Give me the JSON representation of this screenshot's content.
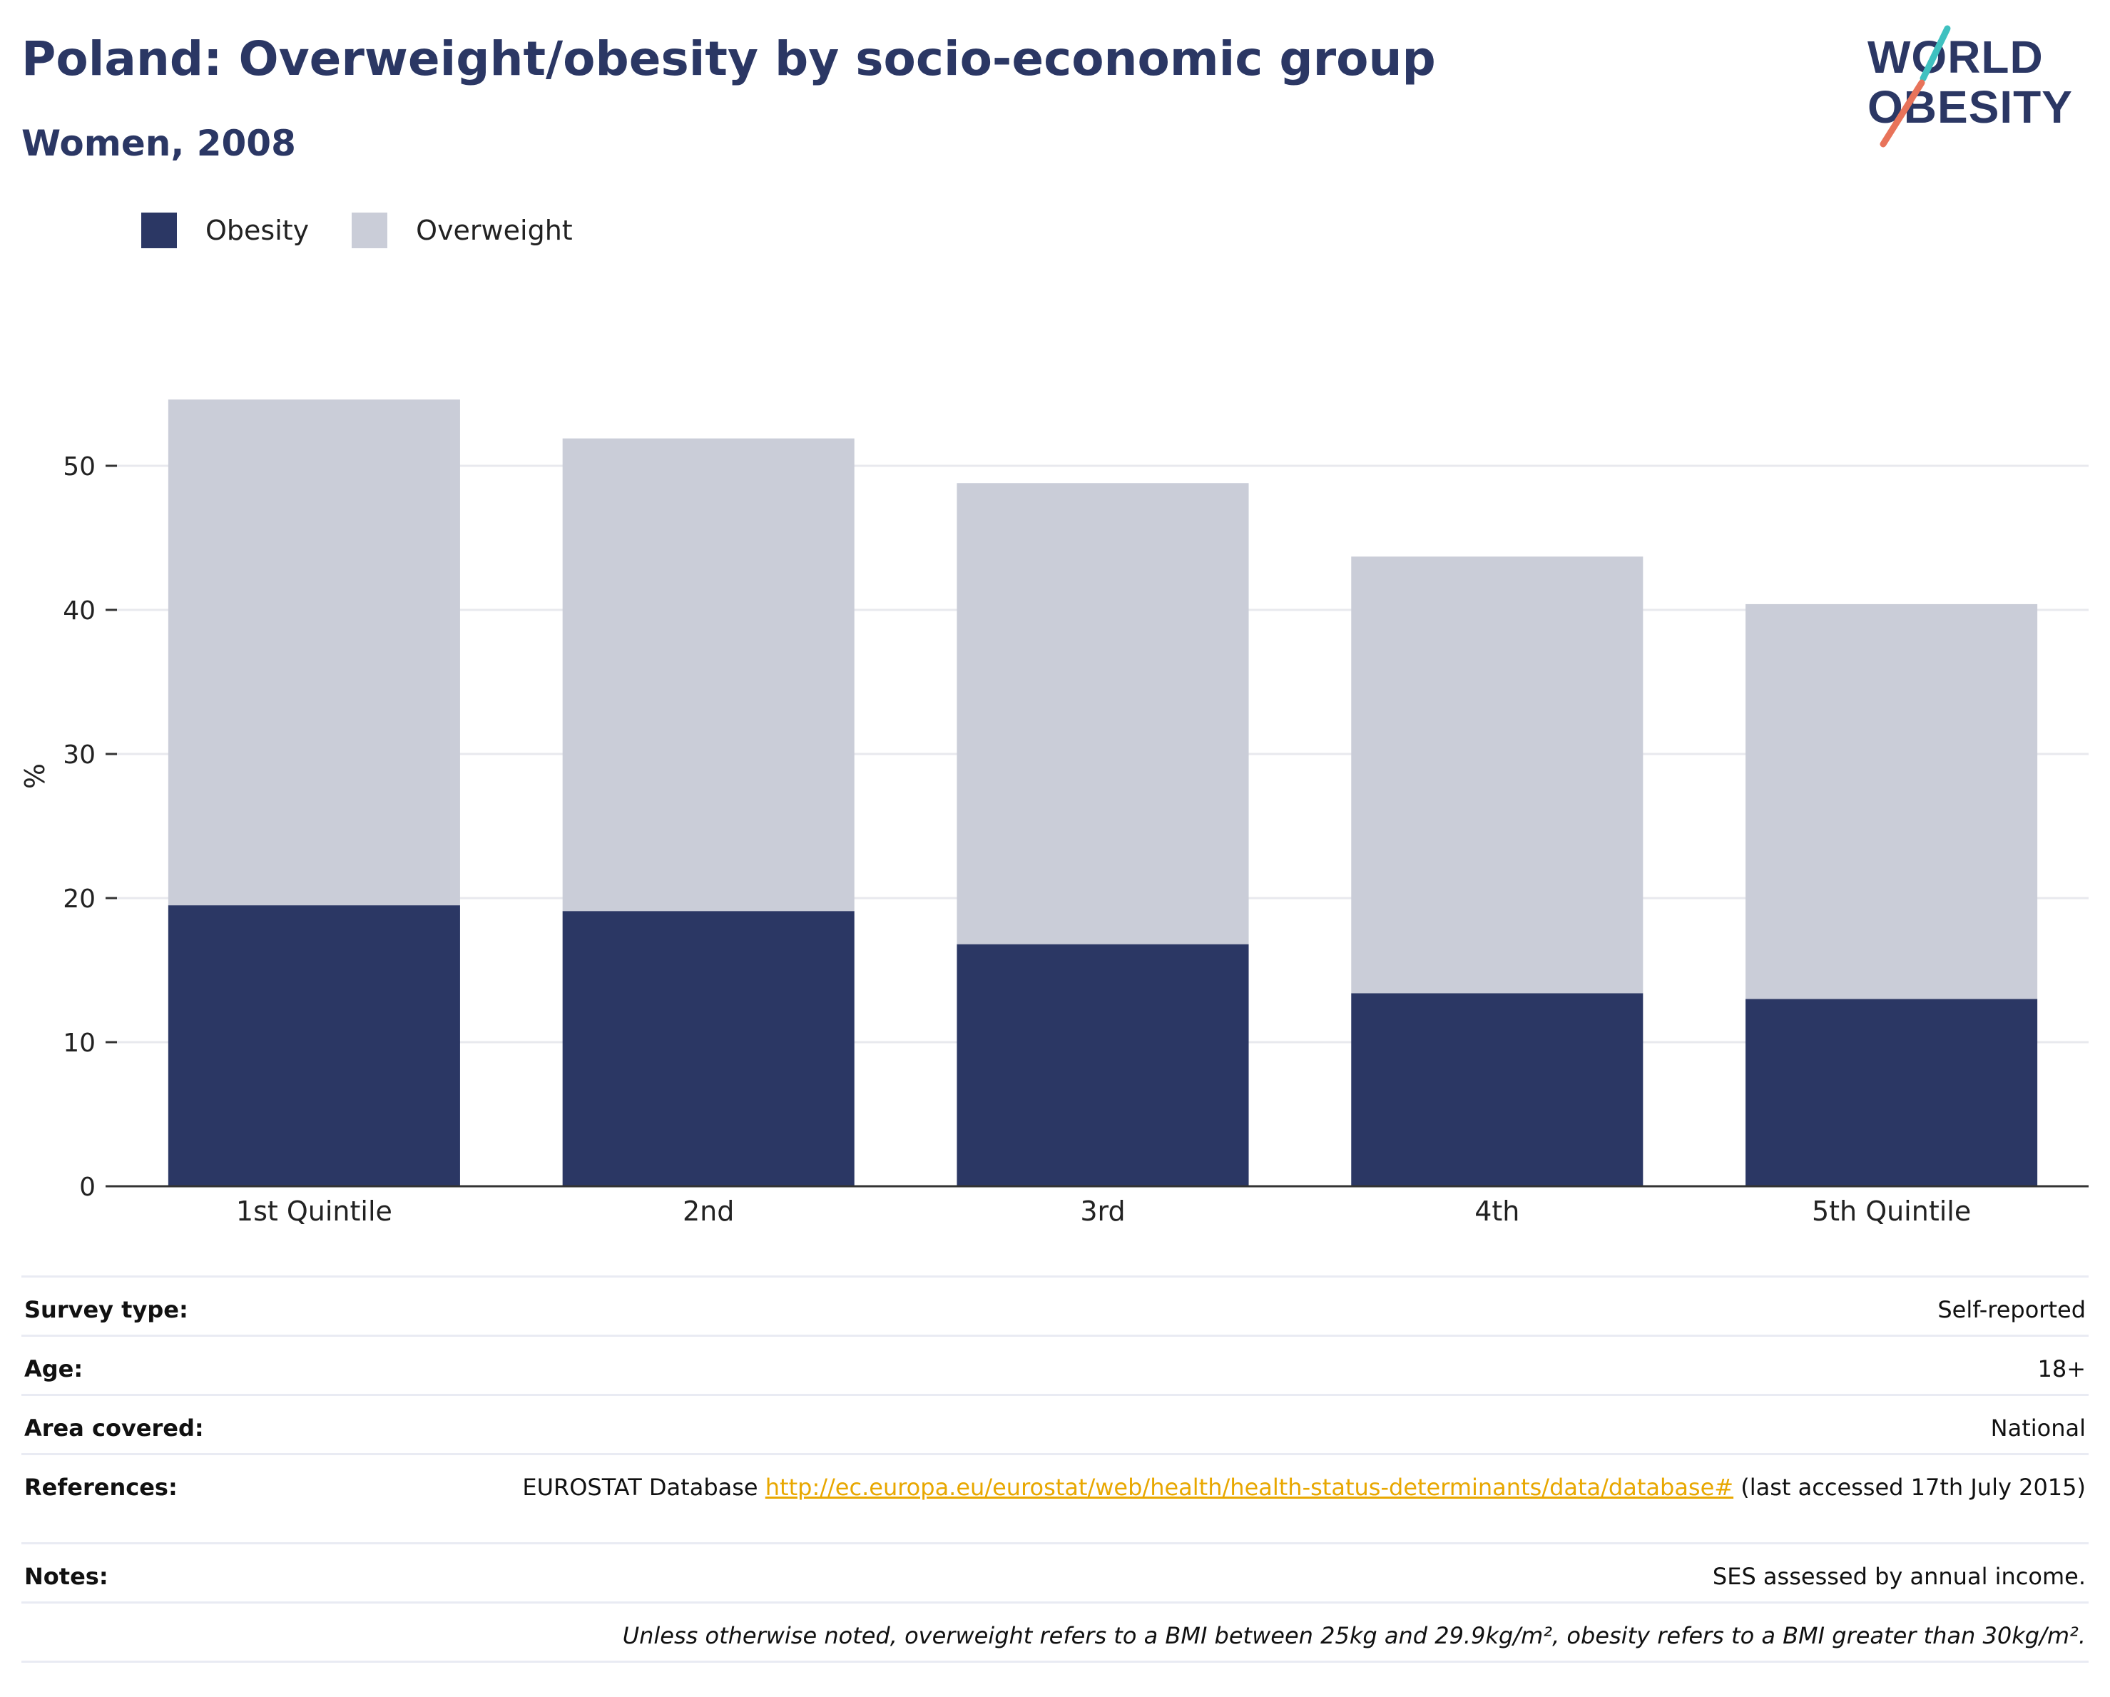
{
  "header": {
    "title": "Poland: Overweight/obesity by socio-economic group",
    "subtitle": "Women, 2008"
  },
  "logo": {
    "line1": "WORLD",
    "line2": "OBESITY"
  },
  "colors": {
    "obesity": "#2b3764",
    "overweight": "#cacdd8",
    "text": "#2b3764",
    "link": "#e8a700"
  },
  "legend": {
    "obesity": "Obesity",
    "overweight": "Overweight"
  },
  "chart_data": {
    "type": "bar",
    "stacked": true,
    "categories": [
      "1st Quintile",
      "2nd",
      "3rd",
      "4th",
      "5th Quintile"
    ],
    "series": [
      {
        "name": "Obesity",
        "values": [
          19.5,
          19.1,
          16.8,
          13.4,
          13.0
        ]
      },
      {
        "name": "Overweight",
        "values": [
          35.1,
          32.8,
          32.0,
          30.3,
          27.4
        ]
      }
    ],
    "ylabel": "%",
    "ylim": [
      0,
      55
    ],
    "yticks": [
      0,
      10,
      20,
      30,
      40,
      50
    ],
    "grid": true,
    "legend_position": "top-left"
  },
  "meta": {
    "survey_type_label": "Survey type:",
    "survey_type_value": "Self-reported",
    "age_label": "Age:",
    "age_value": "18+",
    "area_label": "Area covered:",
    "area_value": "National",
    "references_label": "References:",
    "references_prefix": "EUROSTAT Database ",
    "references_link": "http://ec.europa.eu/eurostat/web/health/health-status-determinants/data/database#",
    "references_suffix": " (last accessed 17th July 2015)",
    "notes_label": "Notes:",
    "notes_value": "SES assessed by annual income.",
    "footnote": "Unless otherwise noted, overweight refers to a BMI between 25kg and 29.9kg/m², obesity refers to a BMI greater than 30kg/m²."
  }
}
